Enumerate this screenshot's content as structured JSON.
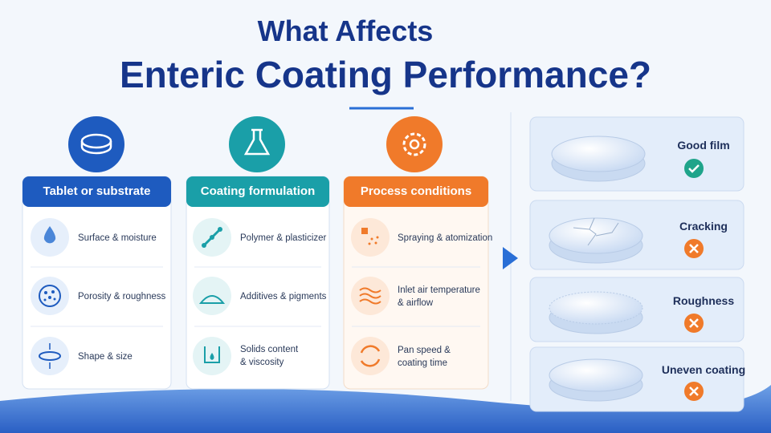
{
  "title": {
    "line1": "What Affects",
    "line2": "Enteric Coating Performance?"
  },
  "columns": [
    {
      "heading": "Tablet or substrate",
      "items": [
        "Surface & moisture",
        "Porosity & roughness",
        "Shape & size"
      ]
    },
    {
      "heading": "Coating formulation",
      "items": [
        "Polymer & plasticizer",
        "Additives & pigments",
        "Solids content\n& viscosity"
      ]
    },
    {
      "heading": "Process conditions",
      "items": [
        "Spraying & atomization",
        "Inlet air temperature\n& airflow",
        "Pan speed &\ncoating time"
      ]
    }
  ],
  "outcomes": [
    "Good film",
    "Cracking",
    "Roughness",
    "Uneven coating"
  ]
}
